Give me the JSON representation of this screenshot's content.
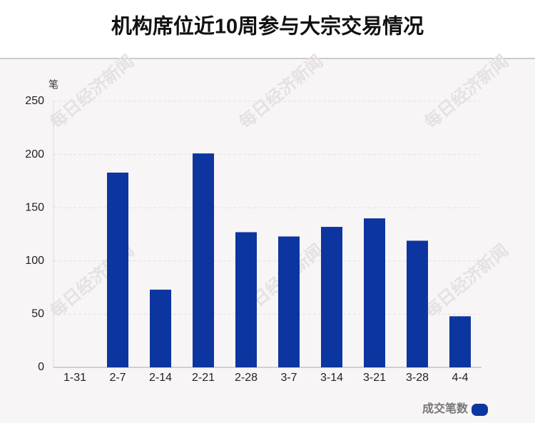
{
  "chart_data": {
    "type": "bar",
    "title": "机构席位近10周参与大宗交易情况",
    "y_label": "笔",
    "categories": [
      "1-31",
      "2-7",
      "2-14",
      "2-21",
      "2-28",
      "3-7",
      "3-14",
      "3-21",
      "3-28",
      "4-4"
    ],
    "series": [
      {
        "name": "成交笔数",
        "color": "#0c35a0",
        "values": [
          0,
          183,
          73,
          201,
          127,
          123,
          132,
          140,
          119,
          48
        ]
      }
    ],
    "ylim": [
      0,
      250
    ],
    "yticks": [
      0,
      50,
      100,
      150,
      200,
      250
    ],
    "grid": true,
    "legend": "bottom-right",
    "watermark": "每日经济新闻"
  }
}
